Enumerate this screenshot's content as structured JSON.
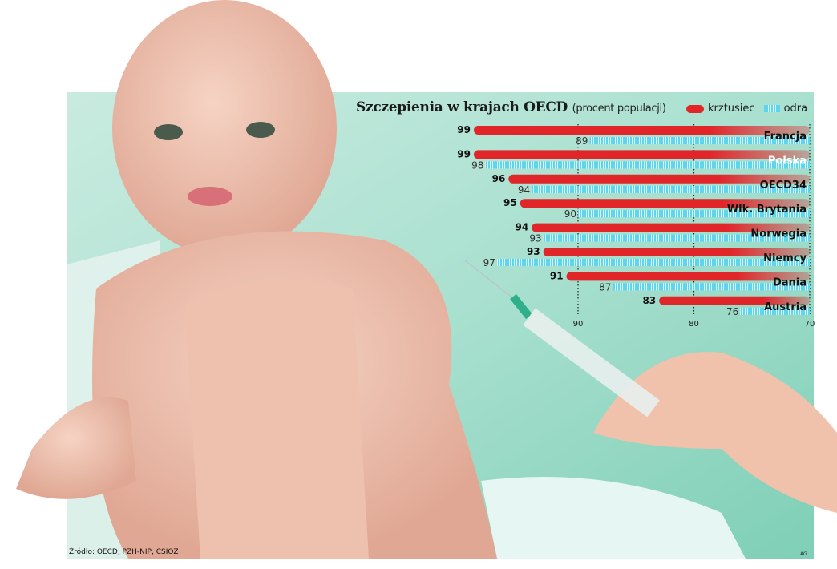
{
  "chart_data": {
    "type": "bar",
    "title": "Szczepienia w krajach OECD",
    "subtitle": "(procent populacji)",
    "categories": [
      "Francja",
      "Polska",
      "OECD34",
      "Wlk. Brytania",
      "Norwegia",
      "Niemcy",
      "Dania",
      "Austria"
    ],
    "series": [
      {
        "name": "krztusiec",
        "values": [
          99,
          99,
          96,
          95,
          94,
          93,
          91,
          83
        ],
        "color": "#e1262a"
      },
      {
        "name": "odra",
        "values": [
          89,
          98,
          94,
          90,
          93,
          97,
          87,
          76
        ],
        "color": "#5fd4ee"
      }
    ],
    "xlim": [
      100,
      70
    ],
    "x_reversed": true,
    "xticks": [
      "90",
      "80",
      "70"
    ],
    "grid": "dotted vertical at ticks",
    "highlighted_category": "Polska",
    "legend_placement": "top-right"
  },
  "footer": {
    "source": "Źródło: OECD, PZH-NIP, CSIOZ",
    "credit": "AG"
  }
}
